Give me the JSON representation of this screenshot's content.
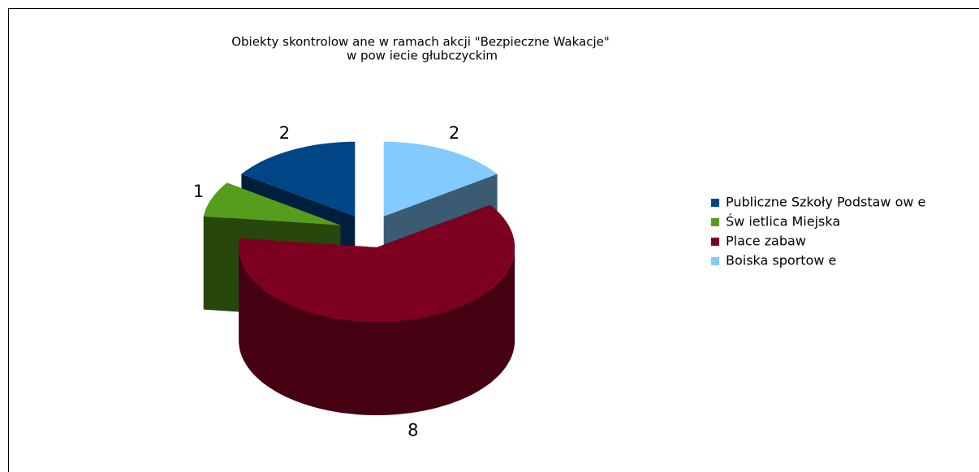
{
  "chart_data": {
    "type": "pie3d",
    "title": [
      "Obiekty skontrolow ane w  ramach akcji \"Bezpieczne Wakacje\"",
      "w  pow iecie głubczyckim"
    ],
    "categories": [
      "Publiczne Szkoły Podstaw ow e",
      "Św ietlica Miejska",
      "Place zabaw",
      "Boiska sportow e"
    ],
    "values": [
      2,
      1,
      8,
      2
    ],
    "colors": [
      "#004586",
      "#579d1c",
      "#7e0021",
      "#83caff"
    ],
    "legend": "right"
  }
}
